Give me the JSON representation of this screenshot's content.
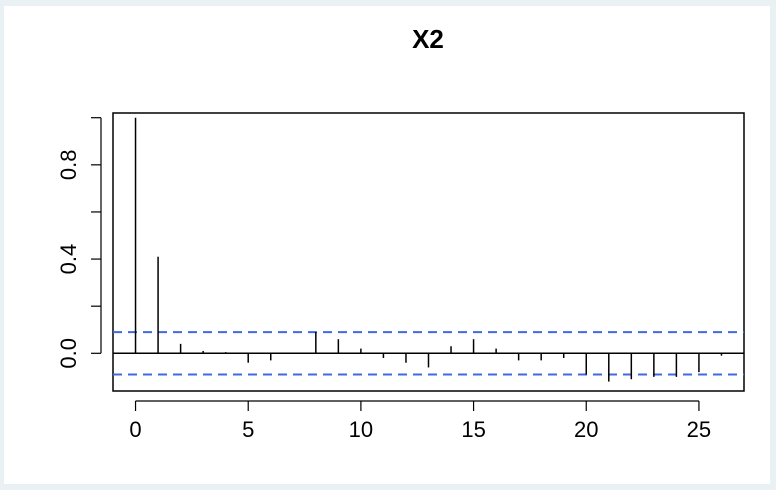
{
  "chart_data": {
    "type": "bar",
    "title": "X2",
    "xlabel": "",
    "ylabel": "",
    "x": [
      0,
      1,
      2,
      3,
      4,
      5,
      6,
      7,
      8,
      9,
      10,
      11,
      12,
      13,
      14,
      15,
      16,
      17,
      18,
      19,
      20,
      21,
      22,
      23,
      24,
      25,
      26
    ],
    "values": [
      1.0,
      0.41,
      0.04,
      0.01,
      0.005,
      -0.04,
      -0.03,
      0.0,
      0.09,
      0.06,
      0.02,
      -0.02,
      -0.04,
      -0.06,
      0.03,
      0.06,
      0.02,
      -0.03,
      -0.03,
      -0.02,
      -0.09,
      -0.12,
      -0.11,
      -0.1,
      -0.1,
      -0.08,
      -0.01
    ],
    "conf_limit": 0.09,
    "conf_line_color": "#4169e1",
    "xlim": [
      -1,
      27
    ],
    "ylim": [
      -0.16,
      1.02
    ],
    "x_ticks": [
      0,
      5,
      10,
      15,
      20,
      25
    ],
    "x_tick_labels": [
      "0",
      "5",
      "10",
      "15",
      "20",
      "25"
    ],
    "y_ticks": [
      0.0,
      0.2,
      0.4,
      0.6,
      0.8,
      1.0
    ],
    "y_tick_labels": [
      "0.0",
      "",
      "0.4",
      "",
      "0.8",
      ""
    ],
    "grid": false,
    "legend": "none"
  }
}
